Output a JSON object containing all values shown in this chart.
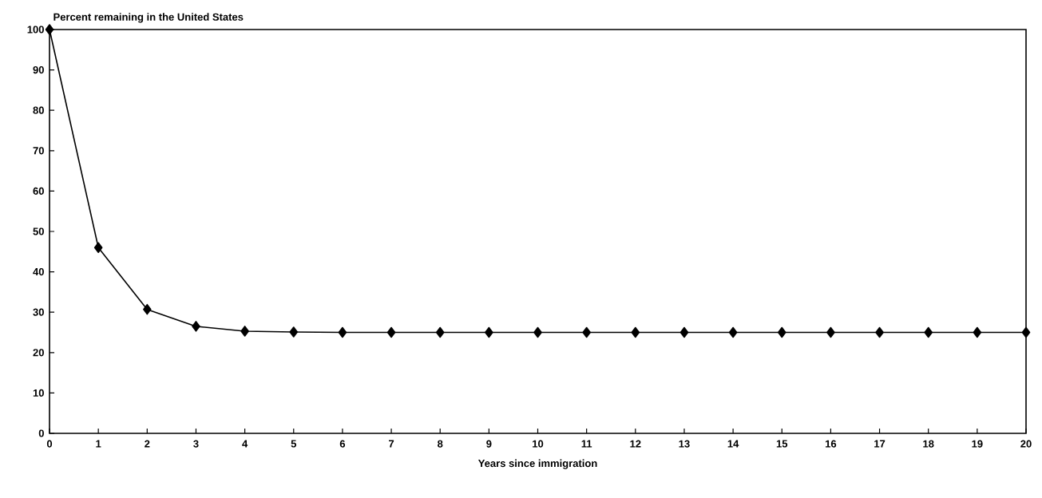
{
  "chart_data": {
    "type": "line",
    "title": "Percent remaining in the United States",
    "xlabel": "Years since immigration",
    "x": [
      0,
      1,
      2,
      3,
      4,
      5,
      6,
      7,
      8,
      9,
      10,
      11,
      12,
      13,
      14,
      15,
      16,
      17,
      18,
      19,
      20
    ],
    "series": [
      {
        "color": "#000000",
        "values": [
          100,
          46,
          30.7,
          26.5,
          25.3,
          25.1,
          25,
          25,
          25,
          25,
          25,
          25,
          25,
          25,
          25,
          25,
          25,
          25,
          25,
          25,
          25
        ]
      }
    ],
    "xlim": [
      0,
      20
    ],
    "xticks": [
      0,
      1,
      2,
      3,
      4,
      5,
      6,
      7,
      8,
      9,
      10,
      11,
      12,
      13,
      14,
      15,
      16,
      17,
      18,
      19,
      20
    ],
    "ylim": [
      0,
      100
    ],
    "yticks": [
      0,
      10,
      20,
      30,
      40,
      50,
      60,
      70,
      80,
      90,
      100
    ],
    "grid": false,
    "marker": "diamond",
    "line_style": "solid"
  }
}
